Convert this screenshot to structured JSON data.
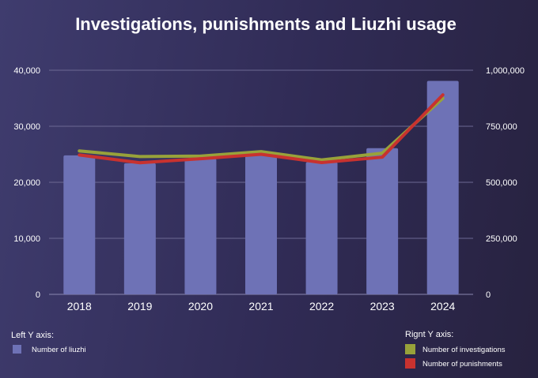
{
  "chart_data": {
    "type": "bar",
    "title": "Investigations, punishments and Liuzhi usage",
    "categories": [
      "2018",
      "2019",
      "2020",
      "2021",
      "2022",
      "2023",
      "2024"
    ],
    "left_axis": {
      "ylim": [
        0,
        40000
      ],
      "ticks": [
        "0",
        "10,000",
        "20,000",
        "30,000",
        "40,000"
      ]
    },
    "right_axis": {
      "ylim": [
        0,
        1000000
      ],
      "ticks": [
        "0",
        "250,000",
        "500,000",
        "750,000",
        "1,000,000"
      ]
    },
    "series": [
      {
        "name": "Number of liuzhi",
        "type": "bar",
        "axis": "left",
        "color": "#6e72b6",
        "values": [
          24800,
          23400,
          24200,
          24900,
          23600,
          26100,
          38100
        ]
      },
      {
        "name": "Number of investigations",
        "type": "line",
        "axis": "right",
        "color": "#98a23a",
        "values": [
          640000,
          615000,
          617000,
          637000,
          600000,
          630000,
          875000
        ]
      },
      {
        "name": "Number of punishments",
        "type": "line",
        "axis": "right",
        "color": "#c8322f",
        "values": [
          622000,
          587000,
          605000,
          625000,
          588000,
          612000,
          890000
        ]
      }
    ],
    "legend": {
      "left_heading": "Left Y axis:",
      "right_heading": "Rignt Y axis:"
    },
    "grid": true
  }
}
